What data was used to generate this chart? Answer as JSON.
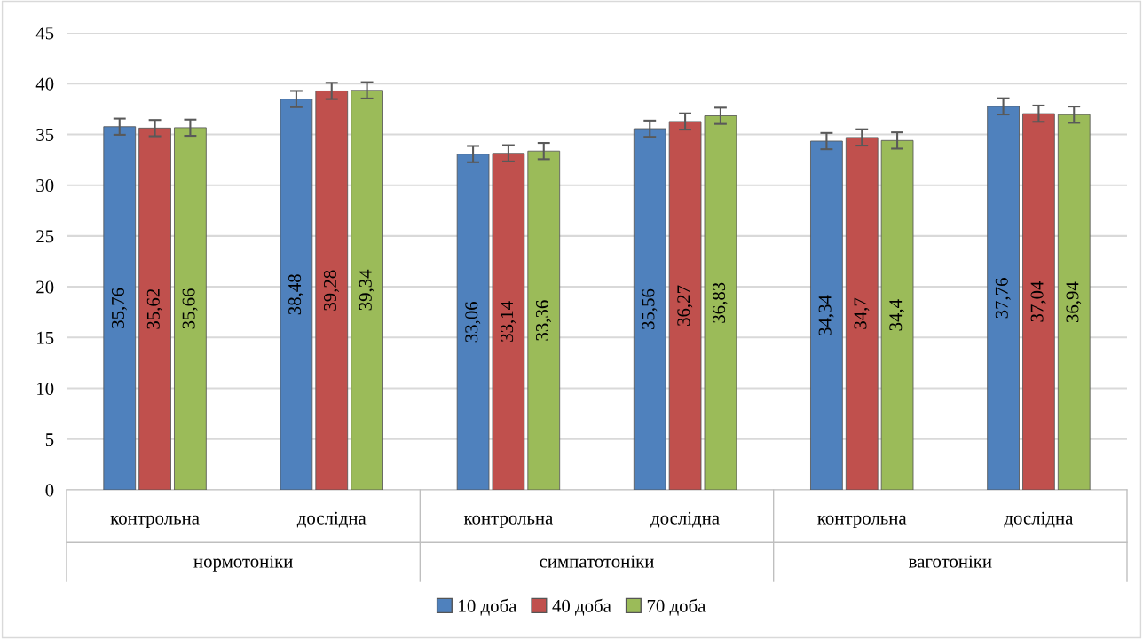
{
  "chart_data": {
    "type": "bar",
    "categories": [
      "контрольна",
      "дослідна",
      "контрольна",
      "дослідна",
      "контрольна",
      "дослідна"
    ],
    "annotations": [
      "нормотоніки",
      "симпатотоніки",
      "ваготоніки"
    ],
    "series": [
      {
        "name": "10 доба",
        "color": "#4f81bd",
        "values": [
          35.76,
          38.48,
          33.06,
          35.56,
          34.34,
          37.76
        ],
        "errors": [
          0.8,
          0.8,
          0.8,
          0.8,
          0.8,
          0.8
        ],
        "value_labels": [
          "35,76",
          "38,48",
          "33,06",
          "35,56",
          "34,34",
          "37,76"
        ]
      },
      {
        "name": "40 доба",
        "color": "#c0504d",
        "values": [
          35.62,
          39.28,
          33.14,
          36.27,
          34.7,
          37.04
        ],
        "errors": [
          0.8,
          0.8,
          0.8,
          0.8,
          0.8,
          0.8
        ],
        "value_labels": [
          "35,62",
          "39,28",
          "33,14",
          "36,27",
          "34,7",
          "37,04"
        ]
      },
      {
        "name": "70 доба",
        "color": "#9bbb59",
        "values": [
          35.66,
          39.34,
          33.36,
          36.83,
          34.4,
          36.94
        ],
        "errors": [
          0.8,
          0.8,
          0.8,
          0.8,
          0.8,
          0.8
        ],
        "value_labels": [
          "35,66",
          "39,34",
          "33,36",
          "36,83",
          "34,4",
          "36,94"
        ]
      }
    ],
    "ylim": [
      0,
      45
    ],
    "yticks": [
      0,
      5,
      10,
      15,
      20,
      25,
      30,
      35,
      40,
      45
    ],
    "grid": "y",
    "legend": "bottom"
  }
}
